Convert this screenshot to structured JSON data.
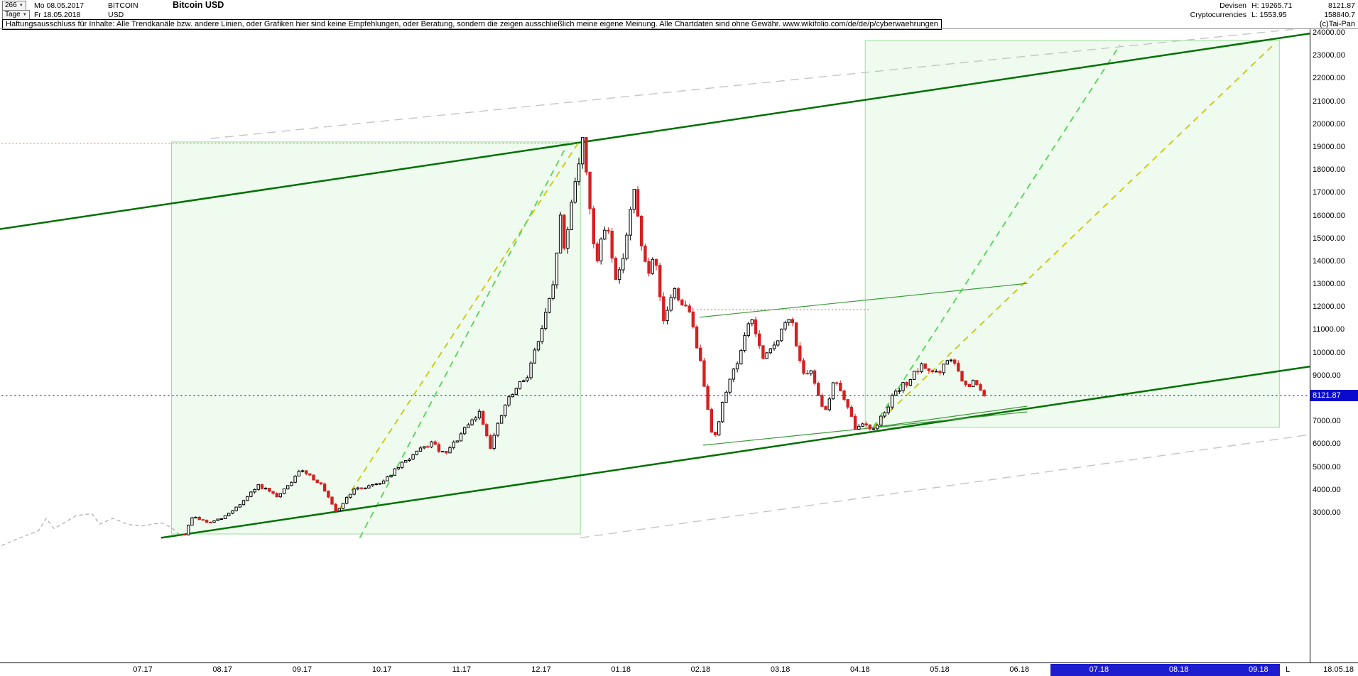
{
  "icons": {
    "caret": "▼"
  },
  "header": {
    "bars_count": "266",
    "start_date": "Mo 08.05.2017",
    "symbol": "BITCOIN",
    "title": "Bitcoin USD",
    "timeframe": "Tage",
    "end_date": "Fr 18.05.2018",
    "currency": "USD",
    "category_line1": "Devisen",
    "category_line2": "Cryptocurrencies",
    "high_label": "H: 19265.71",
    "low_label": "L: 1553.95",
    "last_price": "8121.87",
    "volume": "158840.7"
  },
  "disclaimer": {
    "text": "Haftungsausschluss für Inhalte: Alle Trendkanäle bzw. andere Linien, oder Grafiken hier sind keine Empfehlungen, oder Beratung, sondern die zeigen ausschließlich meine eigene Meinung. Alle Chartdaten sind ohne Gewähr.  www.wikifolio.com/de/de/p/cyberwaehrungen",
    "credit": "(c)Tai-Pan"
  },
  "chart_data": {
    "type": "candlestick",
    "title": "Bitcoin USD",
    "instrument": "BITCOIN",
    "currency": "USD",
    "bars": 266,
    "date_range": {
      "from": "08.05.2017",
      "to": "18.05.2018"
    },
    "high": 19265.71,
    "low": 1553.95,
    "last": 8121.87,
    "last_str": "8121.87",
    "y_tick_values": [
      24000,
      23000,
      22000,
      21000,
      20000,
      19000,
      18000,
      17000,
      16000,
      15000,
      14000,
      13000,
      12000,
      11000,
      10000,
      9000,
      8000,
      7000,
      6000,
      5000,
      4000,
      3000
    ],
    "x_axis": {
      "months": [
        "07.17",
        "08.17",
        "09.17",
        "10.17",
        "11.17",
        "12.17",
        "01.18",
        "02.18",
        "03.18",
        "04.18",
        "05.18",
        "06.18",
        "07.18",
        "08.18",
        "09.18"
      ],
      "highlight_start_index": 12,
      "last_marker": "L",
      "last_date_label": "18.05.18"
    },
    "colors": {
      "up": "#000000",
      "up_fill": "#ffffff",
      "down": "#d42020",
      "pre_data": "#aaaaaa",
      "region_fill": "rgba(150,230,150,0.16)",
      "region_stroke": "#9ade9a"
    },
    "pre_data_line": [
      [
        "2017-05-08",
        1560
      ],
      [
        "2017-05-15",
        1900
      ],
      [
        "2017-05-22",
        2200
      ],
      [
        "2017-05-25",
        2750
      ],
      [
        "2017-05-28",
        2300
      ],
      [
        "2017-06-06",
        2870
      ],
      [
        "2017-06-12",
        2960
      ],
      [
        "2017-06-15",
        2500
      ],
      [
        "2017-06-20",
        2750
      ],
      [
        "2017-06-26",
        2480
      ],
      [
        "2017-07-01",
        2420
      ],
      [
        "2017-07-08",
        2560
      ],
      [
        "2017-07-12",
        2350
      ],
      [
        "2017-07-16",
        1950
      ]
    ],
    "price_anchors": [
      [
        "2017-07-17",
        2050
      ],
      [
        "2017-07-20",
        2850
      ],
      [
        "2017-07-26",
        2550
      ],
      [
        "2017-08-01",
        2750
      ],
      [
        "2017-08-08",
        3400
      ],
      [
        "2017-08-15",
        4200
      ],
      [
        "2017-08-22",
        3650
      ],
      [
        "2017-09-01",
        4900
      ],
      [
        "2017-09-08",
        4250
      ],
      [
        "2017-09-14",
        3000
      ],
      [
        "2017-09-20",
        3950
      ],
      [
        "2017-10-01",
        4350
      ],
      [
        "2017-10-12",
        5450
      ],
      [
        "2017-10-20",
        6050
      ],
      [
        "2017-10-25",
        5500
      ],
      [
        "2017-11-01",
        6450
      ],
      [
        "2017-11-08",
        7400
      ],
      [
        "2017-11-12",
        5900
      ],
      [
        "2017-11-18",
        7800
      ],
      [
        "2017-11-26",
        9000
      ],
      [
        "2017-12-01",
        10900
      ],
      [
        "2017-12-06",
        13000
      ],
      [
        "2017-12-08",
        16200
      ],
      [
        "2017-12-10",
        14300
      ],
      [
        "2017-12-13",
        17100
      ],
      [
        "2017-12-17",
        19300
      ],
      [
        "2017-12-22",
        13800
      ],
      [
        "2017-12-26",
        15800
      ],
      [
        "2017-12-30",
        12900
      ],
      [
        "2018-01-06",
        17000
      ],
      [
        "2018-01-11",
        13300
      ],
      [
        "2018-01-14",
        14100
      ],
      [
        "2018-01-17",
        11200
      ],
      [
        "2018-01-21",
        12800
      ],
      [
        "2018-01-28",
        11500
      ],
      [
        "2018-02-02",
        8900
      ],
      [
        "2018-02-06",
        6050
      ],
      [
        "2018-02-11",
        8500
      ],
      [
        "2018-02-17",
        10200
      ],
      [
        "2018-02-20",
        11700
      ],
      [
        "2018-02-25",
        9600
      ],
      [
        "2018-03-05",
        11600
      ],
      [
        "2018-03-10",
        8900
      ],
      [
        "2018-03-13",
        9100
      ],
      [
        "2018-03-18",
        7400
      ],
      [
        "2018-03-22",
        8900
      ],
      [
        "2018-03-30",
        6600
      ],
      [
        "2018-04-03",
        7000
      ],
      [
        "2018-04-06",
        6550
      ],
      [
        "2018-04-13",
        8000
      ],
      [
        "2018-04-20",
        8850
      ],
      [
        "2018-04-25",
        9400
      ],
      [
        "2018-05-01",
        9050
      ],
      [
        "2018-05-05",
        9850
      ],
      [
        "2018-05-11",
        8450
      ],
      [
        "2018-05-14",
        8700
      ],
      [
        "2018-05-18",
        8121.87
      ]
    ],
    "regions": [
      {
        "name": "trend-channel-region-1",
        "from": "2017-07-12",
        "to": "2017-12-16",
        "price_top": 19220,
        "price_bottom": 2070
      },
      {
        "name": "trend-channel-region-2",
        "from": "2018-04-03",
        "to": "2018-09-09",
        "price_top": 23660,
        "price_bottom": 6730
      }
    ],
    "trend_lines": [
      {
        "name": "gray-dashed-upper",
        "color": "#c4c4c4",
        "width": 1.4,
        "dash": "12,8",
        "from": [
          "2017-07-27",
          19370
        ],
        "to": [
          "2018-09-18",
          24190
        ]
      },
      {
        "name": "gray-dashed-lower",
        "color": "#c4c4c4",
        "width": 1.4,
        "dash": "12,8",
        "from": [
          "2017-12-16",
          1900
        ],
        "to": [
          "2018-09-21",
          6420
        ]
      },
      {
        "name": "yellow-dashed-rally-2017",
        "color": "#c9c900",
        "width": 1.8,
        "dash": "9,7",
        "from": [
          "2017-09-15",
          3120
        ],
        "to": [
          "2017-12-15",
          19150
        ]
      },
      {
        "name": "green-dashed-rally-2017",
        "color": "#55d455",
        "width": 1.8,
        "dash": "9,7",
        "from": [
          "2017-09-23",
          1900
        ],
        "to": [
          "2017-12-10",
          18900
        ]
      },
      {
        "name": "yellow-dashed-projection-2018",
        "color": "#c9c900",
        "width": 1.8,
        "dash": "9,7",
        "from": [
          "2018-04-06",
          6730
        ],
        "to": [
          "2018-09-07",
          23500
        ]
      },
      {
        "name": "green-dashed-projection-2018",
        "color": "#55d455",
        "width": 1.8,
        "dash": "9,7",
        "from": [
          "2018-04-06",
          6730
        ],
        "to": [
          "2018-07-09",
          23470
        ]
      },
      {
        "name": "upper-trend-channel",
        "color": "#007000",
        "width": 2.5,
        "dash": null,
        "from": [
          "2017-05-07",
          15400
        ],
        "to": [
          "2018-09-21",
          23970
        ]
      },
      {
        "name": "lower-trend-channel",
        "color": "#007000",
        "width": 2.5,
        "dash": null,
        "from": [
          "2017-07-08",
          1900
        ],
        "to": [
          "2018-09-21",
          9400
        ]
      },
      {
        "name": "minor-green-mid-line",
        "color": "#3a9a3a",
        "width": 1.2,
        "dash": null,
        "from": [
          "2018-01-31",
          11550
        ],
        "to": [
          "2018-06-04",
          13030
        ]
      },
      {
        "name": "minor-green-support-1",
        "color": "#3a9a3a",
        "width": 1.2,
        "dash": null,
        "from": [
          "2018-02-02",
          5950
        ],
        "to": [
          "2018-06-04",
          7410
        ]
      },
      {
        "name": "minor-green-support-2",
        "color": "#3a9a3a",
        "width": 1.2,
        "dash": null,
        "from": [
          "2018-04-06",
          6730
        ],
        "to": [
          "2018-06-04",
          7660
        ]
      },
      {
        "name": "red-dotted-resistance-high",
        "color": "#ff7755",
        "width": 1.2,
        "dash": "2,3",
        "from": [
          "2017-05-08",
          19160
        ],
        "to": [
          "2017-12-16",
          19160
        ]
      },
      {
        "name": "red-dotted-resistance-feb",
        "color": "#ff7755",
        "width": 1.2,
        "dash": "2,3",
        "from": [
          "2018-01-30",
          11880
        ],
        "to": [
          "2018-04-05",
          11880
        ]
      }
    ],
    "current_price_line": {
      "name": "current-price-dotted-line",
      "color": "#1212cc",
      "width": 1.2,
      "dash": "2,4",
      "from": [
        "2017-05-08",
        8121.87
      ],
      "to": [
        "2018-09-21",
        8121.87
      ]
    }
  }
}
